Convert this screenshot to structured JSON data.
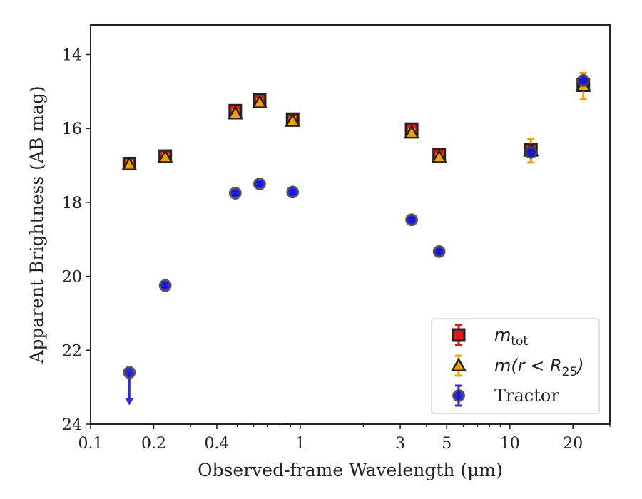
{
  "chart_data": {
    "type": "scatter",
    "xlabel": "Observed-frame Wavelength (μm)",
    "ylabel": "Apparent Brightness (AB mag)",
    "xscale": "log",
    "xlim": [
      0.1,
      30
    ],
    "ylim": [
      24,
      13.2
    ],
    "y_inverted": true,
    "x_ticks": [
      {
        "value": 0.1,
        "label": "0.1"
      },
      {
        "value": 0.2,
        "label": "0.2"
      },
      {
        "value": 0.4,
        "label": "0.4"
      },
      {
        "value": 1,
        "label": "1"
      },
      {
        "value": 3,
        "label": "3"
      },
      {
        "value": 5,
        "label": "5"
      },
      {
        "value": 10,
        "label": "10"
      },
      {
        "value": 20,
        "label": "20"
      }
    ],
    "y_ticks": [
      {
        "value": 14,
        "label": "14"
      },
      {
        "value": 16,
        "label": "16"
      },
      {
        "value": 18,
        "label": "18"
      },
      {
        "value": 20,
        "label": "20"
      },
      {
        "value": 22,
        "label": "22"
      },
      {
        "value": 24,
        "label": "24"
      }
    ],
    "grid": false,
    "legend_position": "lower-right",
    "series": [
      {
        "key": "mtot",
        "name_main": "m",
        "name_sub": "tot",
        "marker": "square",
        "color": "#e8150e",
        "edge": "#222222",
        "error_color": "#e8150e",
        "points": [
          {
            "x": 0.153,
            "y": 16.95,
            "err": 0.12
          },
          {
            "x": 0.227,
            "y": 16.75,
            "err": 0.1
          },
          {
            "x": 0.49,
            "y": 15.52,
            "err": 0.12
          },
          {
            "x": 0.64,
            "y": 15.22,
            "err": 0.13
          },
          {
            "x": 0.92,
            "y": 15.75,
            "err": 0.12
          },
          {
            "x": 3.4,
            "y": 16.02,
            "err": 0.12
          },
          {
            "x": 4.6,
            "y": 16.7,
            "err": 0.12
          },
          {
            "x": 12.6,
            "y": 16.58,
            "err": 0.12
          },
          {
            "x": 22.4,
            "y": 14.83,
            "err": 0.12
          }
        ]
      },
      {
        "key": "mr25",
        "name_main": "m(r < R",
        "name_sub": "25",
        "name_close": ")",
        "marker": "triangle",
        "color": "#f5a000",
        "edge": "#222222",
        "error_color": "#f5a000",
        "points": [
          {
            "x": 0.153,
            "y": 16.98,
            "err": 0.1
          },
          {
            "x": 0.227,
            "y": 16.78,
            "err": 0.1
          },
          {
            "x": 0.49,
            "y": 15.6,
            "err": 0.1
          },
          {
            "x": 0.64,
            "y": 15.3,
            "err": 0.1
          },
          {
            "x": 0.92,
            "y": 15.8,
            "err": 0.1
          },
          {
            "x": 3.4,
            "y": 16.12,
            "err": 0.1
          },
          {
            "x": 4.6,
            "y": 16.78,
            "err": 0.1
          },
          {
            "x": 12.6,
            "y": 16.6,
            "err": 0.32
          },
          {
            "x": 22.4,
            "y": 14.85,
            "err": 0.35
          }
        ]
      },
      {
        "key": "tractor",
        "name": "Tractor",
        "marker": "circle",
        "color": "#1010e0",
        "edge": "#444444",
        "error_color": "#2a2adc",
        "points": [
          {
            "x": 0.153,
            "y": 22.6,
            "err": 0.05,
            "upper_limit": true
          },
          {
            "x": 0.227,
            "y": 20.25,
            "err": 0.05
          },
          {
            "x": 0.49,
            "y": 17.75,
            "err": 0.05
          },
          {
            "x": 0.64,
            "y": 17.5,
            "err": 0.05
          },
          {
            "x": 0.92,
            "y": 17.72,
            "err": 0.05
          },
          {
            "x": 3.4,
            "y": 18.47,
            "err": 0.05
          },
          {
            "x": 4.6,
            "y": 19.33,
            "err": 0.05
          },
          {
            "x": 12.6,
            "y": 16.65,
            "err": 0.05
          },
          {
            "x": 22.4,
            "y": 14.7,
            "err": 0.05
          }
        ]
      }
    ]
  }
}
